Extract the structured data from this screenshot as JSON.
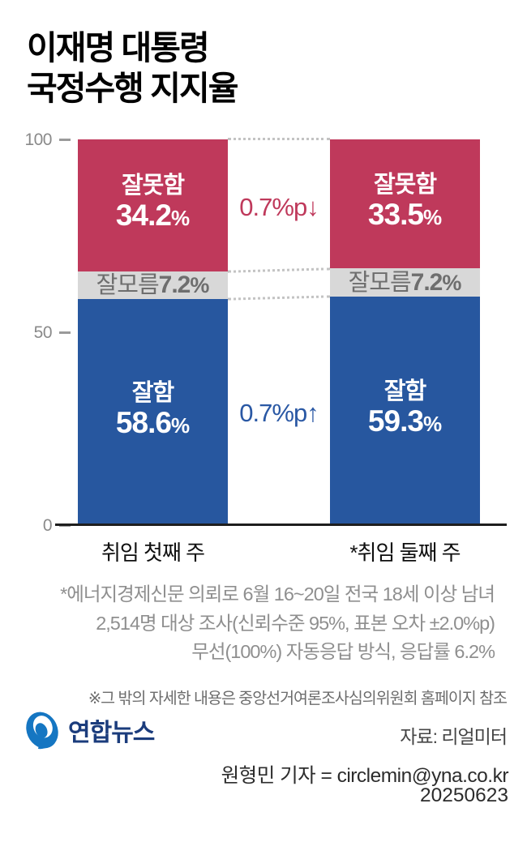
{
  "title": {
    "line1": "이재명 대통령",
    "line2": "국정수행 지지율"
  },
  "chart_data": {
    "type": "bar",
    "stacked": true,
    "title": "이재명 대통령 국정수행 지지율",
    "categories": [
      "취임 첫째 주",
      "*취임 둘째 주"
    ],
    "series": [
      {
        "name": "잘못함",
        "key": "negative",
        "values": [
          34.2,
          33.5
        ],
        "color": "#bf395b",
        "text_color": "#ffffff"
      },
      {
        "name": "잘모름",
        "key": "unsure",
        "values": [
          7.2,
          7.2
        ],
        "color": "#d8d8d8",
        "text_color": "#6e6e6e"
      },
      {
        "name": "잘함",
        "key": "positive",
        "values": [
          58.6,
          59.3
        ],
        "color": "#27579f",
        "text_color": "#ffffff"
      }
    ],
    "ylim": [
      0,
      100
    ],
    "yticks": [
      "100",
      "50",
      "0"
    ],
    "grid": false,
    "legend": false,
    "deltas": [
      {
        "key": "negative",
        "label": "0.7%p↓",
        "color": "#bf395b"
      },
      {
        "key": "positive",
        "label": "0.7%p↑",
        "color": "#2a58a4"
      }
    ]
  },
  "footnotes": [
    "*에너지경제신문 의뢰로 6월 16~20일 전국 18세 이상 남녀",
    "2,514명 대상 조사(신뢰수준 95%, 표본 오차 ±2.0%p)",
    "무선(100%) 자동응답 방식, 응답률 6.2%"
  ],
  "extra_note": "※그 밖의 자세한 내용은 중앙선거여론조사심의위원회 홈페이지 참조",
  "source": "자료: 리얼미터",
  "logo": {
    "text": "연합뉴스",
    "blue": "#1576c2"
  },
  "credit": {
    "byline": "원형민 기자 = circlemin@yna.co.kr",
    "date": "20250623"
  }
}
